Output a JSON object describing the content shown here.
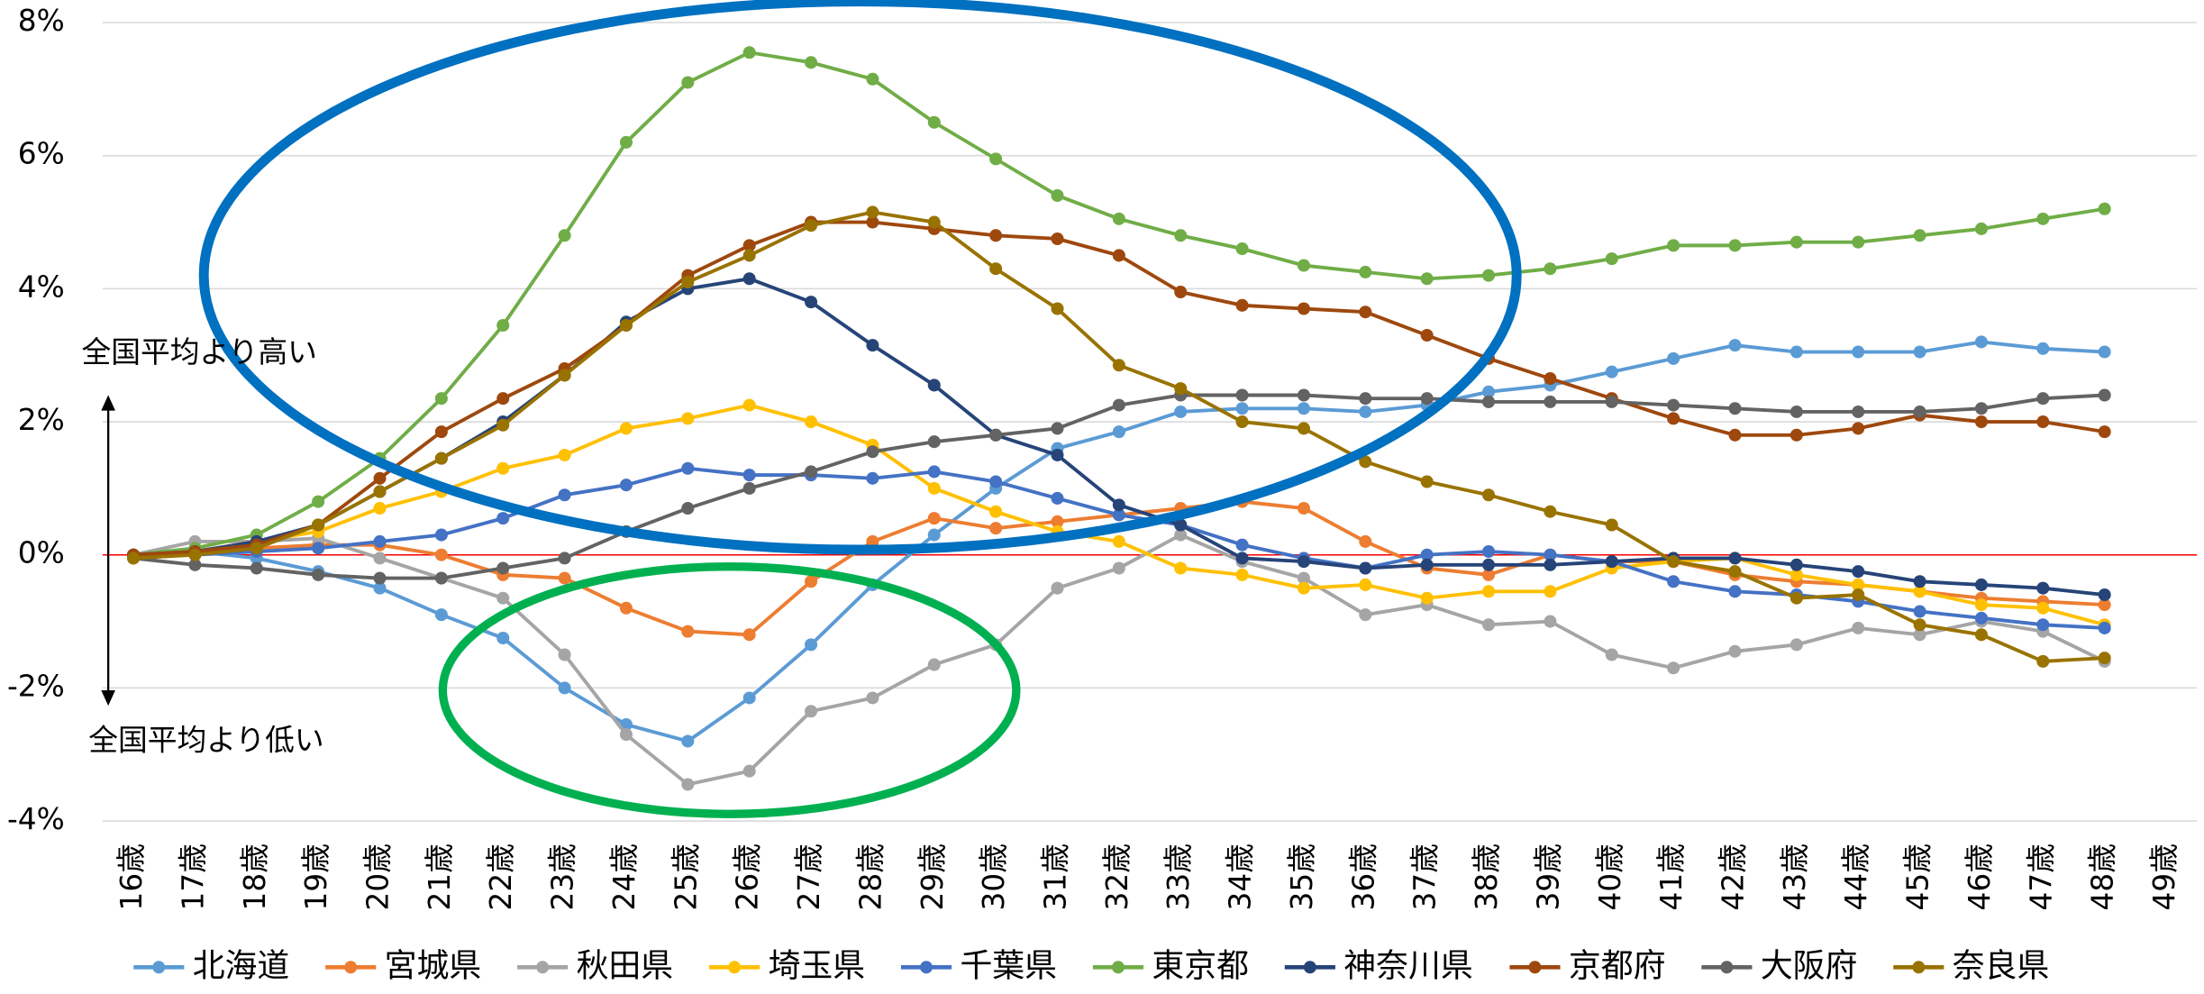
{
  "chart_data": {
    "type": "line",
    "categories": [
      "16歳",
      "17歳",
      "18歳",
      "19歳",
      "20歳",
      "21歳",
      "22歳",
      "23歳",
      "24歳",
      "25歳",
      "26歳",
      "27歳",
      "28歳",
      "29歳",
      "30歳",
      "31歳",
      "32歳",
      "33歳",
      "34歳",
      "35歳",
      "36歳",
      "37歳",
      "38歳",
      "39歳",
      "40歳",
      "41歳",
      "42歳",
      "43歳",
      "44歳",
      "45歳",
      "46歳",
      "47歳",
      "48歳",
      "49歳"
    ],
    "ylim": [
      -4,
      8
    ],
    "yticks": [
      {
        "value": -4,
        "label": "-4%"
      },
      {
        "value": -2,
        "label": "-2%"
      },
      {
        "value": 0,
        "label": "0%"
      },
      {
        "value": 2,
        "label": "2%"
      },
      {
        "value": 4,
        "label": "4%"
      },
      {
        "value": 6,
        "label": "6%"
      },
      {
        "value": 8,
        "label": "8%"
      }
    ],
    "grid": true,
    "zero_line_color": "#ff0000",
    "legend": "bottom",
    "annotations": [
      "全国平均より高い",
      "全国平均より低い"
    ],
    "series": [
      {
        "name": "北海道",
        "color": "#5b9bd5",
        "values": [
          0,
          0.05,
          -0.05,
          -0.25,
          -0.5,
          -0.9,
          -1.25,
          -2.0,
          -2.55,
          -2.8,
          -2.15,
          -1.35,
          -0.45,
          0.3,
          1.0,
          1.6,
          1.85,
          2.15,
          2.2,
          2.2,
          2.15,
          2.25,
          2.45,
          2.55,
          2.75,
          2.95,
          3.15,
          3.05,
          3.05,
          3.05,
          3.2,
          3.1,
          3.05,
          null
        ]
      },
      {
        "name": "宮城県",
        "color": "#ed7d31",
        "values": [
          0,
          0.05,
          0.1,
          0.15,
          0.15,
          0.0,
          -0.3,
          -0.35,
          -0.8,
          -1.15,
          -1.2,
          -0.4,
          0.2,
          0.55,
          0.4,
          0.5,
          0.6,
          0.7,
          0.8,
          0.7,
          0.2,
          -0.2,
          -0.3,
          0.0,
          -0.1,
          -0.1,
          -0.3,
          -0.4,
          -0.45,
          -0.55,
          -0.65,
          -0.7,
          -0.75,
          null
        ]
      },
      {
        "name": "秋田県",
        "color": "#a5a5a5",
        "values": [
          0,
          0.2,
          0.2,
          0.25,
          -0.05,
          -0.35,
          -0.65,
          -1.5,
          -2.7,
          -3.45,
          -3.25,
          -2.35,
          -2.15,
          -1.65,
          -1.35,
          -0.5,
          -0.2,
          0.3,
          -0.1,
          -0.35,
          -0.9,
          -0.75,
          -1.05,
          -1.0,
          -1.5,
          -1.7,
          -1.45,
          -1.35,
          -1.1,
          -1.2,
          -1.0,
          -1.15,
          -1.6,
          null
        ]
      },
      {
        "name": "埼玉県",
        "color": "#ffc000",
        "values": [
          0,
          0.05,
          0.2,
          0.35,
          0.7,
          0.95,
          1.3,
          1.5,
          1.9,
          2.05,
          2.25,
          2.0,
          1.65,
          1.0,
          0.65,
          0.35,
          0.2,
          -0.2,
          -0.3,
          -0.5,
          -0.45,
          -0.65,
          -0.55,
          -0.55,
          -0.2,
          -0.1,
          -0.05,
          -0.3,
          -0.45,
          -0.55,
          -0.75,
          -0.8,
          -1.05,
          null
        ]
      },
      {
        "name": "千葉県",
        "color": "#4472c4",
        "values": [
          0,
          0.0,
          0.05,
          0.1,
          0.2,
          0.3,
          0.55,
          0.9,
          1.05,
          1.3,
          1.2,
          1.2,
          1.15,
          1.25,
          1.1,
          0.85,
          0.6,
          0.45,
          0.15,
          -0.05,
          -0.2,
          0.0,
          0.05,
          0.0,
          -0.1,
          -0.4,
          -0.55,
          -0.6,
          -0.7,
          -0.85,
          -0.95,
          -1.05,
          -1.1,
          null
        ]
      },
      {
        "name": "東京都",
        "color": "#70ad47",
        "values": [
          0,
          0.1,
          0.3,
          0.8,
          1.45,
          2.35,
          3.45,
          4.8,
          6.2,
          7.1,
          7.55,
          7.4,
          7.15,
          6.5,
          5.95,
          5.4,
          5.05,
          4.8,
          4.6,
          4.35,
          4.25,
          4.15,
          4.2,
          4.3,
          4.45,
          4.65,
          4.65,
          4.7,
          4.7,
          4.8,
          4.9,
          5.05,
          5.2,
          null
        ]
      },
      {
        "name": "神奈川県",
        "color": "#264478",
        "values": [
          0,
          0.05,
          0.2,
          0.45,
          0.95,
          1.45,
          2.0,
          2.7,
          3.5,
          4.0,
          4.15,
          3.8,
          3.15,
          2.55,
          1.8,
          1.5,
          0.75,
          0.45,
          -0.05,
          -0.1,
          -0.2,
          -0.15,
          -0.15,
          -0.15,
          -0.1,
          -0.05,
          -0.05,
          -0.15,
          -0.25,
          -0.4,
          -0.45,
          -0.5,
          -0.6,
          null
        ]
      },
      {
        "name": "京都府",
        "color": "#9e480e",
        "values": [
          0,
          0.05,
          0.15,
          0.45,
          1.15,
          1.85,
          2.35,
          2.8,
          3.45,
          4.2,
          4.65,
          5.0,
          5.0,
          4.9,
          4.8,
          4.75,
          4.5,
          3.95,
          3.75,
          3.7,
          3.65,
          3.3,
          2.95,
          2.65,
          2.35,
          2.05,
          1.8,
          1.8,
          1.9,
          2.1,
          2.0,
          2.0,
          1.85,
          null
        ]
      },
      {
        "name": "大阪府",
        "color": "#636363",
        "values": [
          -0.05,
          -0.15,
          -0.2,
          -0.3,
          -0.35,
          -0.35,
          -0.2,
          -0.05,
          0.35,
          0.7,
          1.0,
          1.25,
          1.55,
          1.7,
          1.8,
          1.9,
          2.25,
          2.4,
          2.4,
          2.4,
          2.35,
          2.35,
          2.3,
          2.3,
          2.3,
          2.25,
          2.2,
          2.15,
          2.15,
          2.15,
          2.2,
          2.35,
          2.4,
          null
        ]
      },
      {
        "name": "奈良県",
        "color": "#997300",
        "values": [
          -0.05,
          0.0,
          0.1,
          0.45,
          0.95,
          1.45,
          1.95,
          2.7,
          3.45,
          4.1,
          4.5,
          4.95,
          5.15,
          5.0,
          4.3,
          3.7,
          2.85,
          2.5,
          2.0,
          1.9,
          1.4,
          1.1,
          0.9,
          0.65,
          0.45,
          -0.1,
          -0.25,
          -0.65,
          -0.6,
          -1.05,
          -1.2,
          -1.6,
          -1.55,
          null
        ]
      }
    ]
  }
}
